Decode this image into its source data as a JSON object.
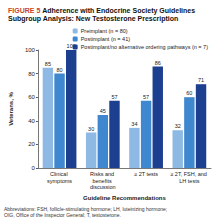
{
  "chart_data": {
    "type": "bar",
    "figure_label": "FIGURE 5",
    "title": "Adherence with Endocrine Society Guidelines",
    "subtitle": "Subgroup Analysis: New Testosterone Prescription",
    "categories": [
      "Clinical symptoms",
      "Risks and benefits discussion",
      "≥ 2T tests",
      "≥ 2T, FSH, and LH tests"
    ],
    "series": [
      {
        "name": "Preimplant (n = 80)",
        "color": "#8db9e4",
        "values": [
          85,
          30,
          34,
          32
        ]
      },
      {
        "name": "Postimplant (n = 41)",
        "color": "#3f88cf",
        "values": [
          80,
          45,
          57,
          60
        ]
      },
      {
        "name": "Postimplant/no alternative ordering pathways (n = 7)",
        "color": "#1d3f8f",
        "values": [
          100,
          57,
          86,
          71
        ]
      }
    ],
    "x_label": "Guideline Recommendations",
    "y_label": "Veterans, %",
    "ylim": [
      0,
      100
    ],
    "yticks": [
      0,
      20,
      40,
      60,
      80,
      100
    ],
    "grid": false,
    "data_labels": true,
    "legend": "top",
    "footnote": "Abbreviations: FSH, follicle-stimulating hormone; LH, luteinizing hormone; OIG, Office of the Inspector General; T, testosterone."
  }
}
